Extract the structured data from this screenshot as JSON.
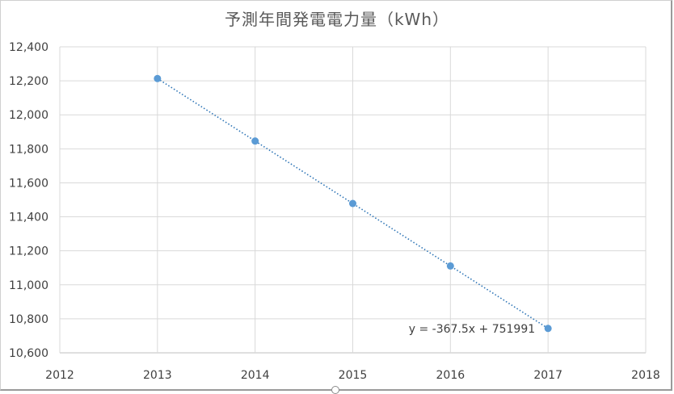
{
  "chart_data": {
    "type": "scatter",
    "title": "予測年間発電電力量（kWh）",
    "xlabel": "",
    "ylabel": "",
    "xlim": [
      2012,
      2018
    ],
    "ylim": [
      10600,
      12400
    ],
    "x_ticks": [
      "2012",
      "2013",
      "2014",
      "2015",
      "2016",
      "2017",
      "2018"
    ],
    "y_ticks": [
      "10,600",
      "10,800",
      "11,000",
      "11,200",
      "11,400",
      "11,600",
      "11,800",
      "12,000",
      "12,200",
      "12,400"
    ],
    "grid": true,
    "legend": "none",
    "series": [
      {
        "x": [
          2013,
          2014,
          2015,
          2016,
          2017
        ],
        "y": [
          12213.5,
          11846,
          11478.5,
          11111,
          10743.5
        ],
        "color": "#5b9bd5"
      }
    ],
    "trendline": {
      "type": "linear",
      "slope": -367.5,
      "intercept": 751991,
      "equation": "y = -367.5x + 751991",
      "color": "#2e75b6"
    }
  }
}
